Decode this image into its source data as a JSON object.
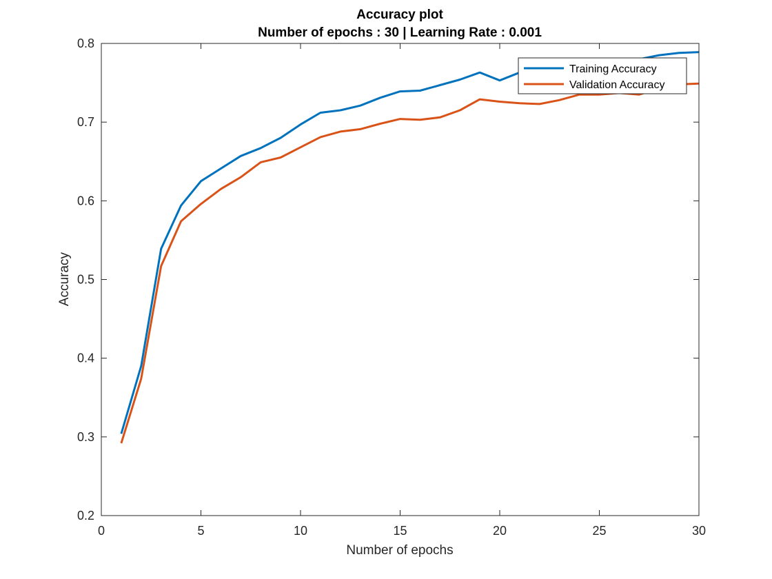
{
  "chart_data": {
    "type": "line",
    "title": "Accuracy plot",
    "subtitle": "Number of epochs : 30 | Learning Rate : 0.001",
    "xlabel": "Number of epochs",
    "ylabel": "Accuracy",
    "xlim": [
      0,
      30
    ],
    "ylim": [
      0.2,
      0.8
    ],
    "xticks": [
      0,
      5,
      10,
      15,
      20,
      25,
      30
    ],
    "xtick_labels": [
      "0",
      "5",
      "10",
      "15",
      "20",
      "25",
      "30"
    ],
    "yticks": [
      0.2,
      0.3,
      0.4,
      0.5,
      0.6,
      0.7,
      0.8
    ],
    "ytick_labels": [
      "0.2",
      "0.3",
      "0.4",
      "0.5",
      "0.6",
      "0.7",
      "0.8"
    ],
    "grid": false,
    "legend_position": "top-right",
    "x": [
      1,
      2,
      3,
      4,
      5,
      6,
      7,
      8,
      9,
      10,
      11,
      12,
      13,
      14,
      15,
      16,
      17,
      18,
      19,
      20,
      21,
      22,
      23,
      24,
      25,
      26,
      27,
      28,
      29,
      30
    ],
    "series": [
      {
        "name": "Training Accuracy",
        "color": "#0072BD",
        "values": [
          0.304,
          0.39,
          0.539,
          0.594,
          0.625,
          0.641,
          0.657,
          0.667,
          0.68,
          0.697,
          0.712,
          0.715,
          0.721,
          0.731,
          0.739,
          0.74,
          0.747,
          0.754,
          0.763,
          0.753,
          0.763,
          0.768,
          0.772,
          0.772,
          0.775,
          0.78,
          0.78,
          0.785,
          0.788,
          0.789
        ]
      },
      {
        "name": "Validation Accuracy",
        "color": "#D95319",
        "values": [
          0.292,
          0.374,
          0.517,
          0.574,
          0.596,
          0.615,
          0.63,
          0.649,
          0.655,
          0.668,
          0.681,
          0.688,
          0.691,
          0.698,
          0.704,
          0.703,
          0.706,
          0.715,
          0.729,
          0.726,
          0.724,
          0.723,
          0.728,
          0.735,
          0.735,
          0.737,
          0.735,
          0.743,
          0.748,
          0.749
        ]
      }
    ]
  }
}
